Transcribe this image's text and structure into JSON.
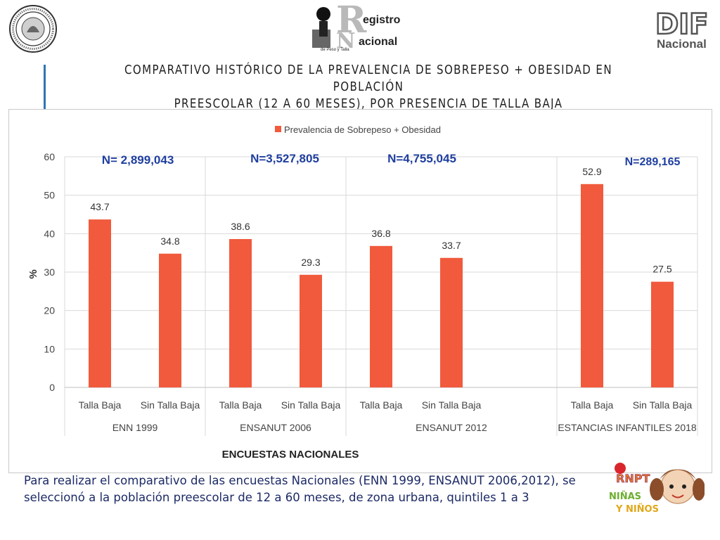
{
  "header": {
    "title_line1": "COMPARATIVO HISTÓRICO DE LA PREVALENCIA DE SOBREPESO + OBESIDAD EN POBLACIÓN",
    "title_line2": "PREESCOLAR (12 A 60 MESES), POR PRESENCIA DE TALLA BAJA",
    "logo_center_text1": "egistro",
    "logo_center_text2": "acional",
    "logo_center_sub": "de Peso y Talla",
    "logo_right_text": "DIF",
    "logo_right_sub": "Nacional"
  },
  "colors": {
    "bar": "#f15a3c",
    "n_text": "#1f3f9f",
    "title": "#1f1f1f",
    "note": "#1c2a66",
    "accent_bar": "#2e75b6"
  },
  "chart_data": {
    "type": "bar",
    "legend": "Prevalencia de Sobrepeso + Obesidad",
    "legend_position": "top",
    "ylabel": "%",
    "xlabel": "ENCUESTAS NACIONALES",
    "ylim": [
      0,
      60
    ],
    "yticks": [
      0,
      10,
      20,
      30,
      40,
      50,
      60
    ],
    "grid": true,
    "groups": [
      {
        "name": "ENN 1999",
        "n_label": "N= 2,899,043",
        "categories": [
          "Talla Baja",
          "Sin Talla Baja"
        ],
        "values": [
          43.7,
          34.8
        ]
      },
      {
        "name": "ENSANUT 2006",
        "n_label": "N=3,527,805",
        "categories": [
          "Talla Baja",
          "Sin Talla Baja"
        ],
        "values": [
          38.6,
          29.3
        ]
      },
      {
        "name": "ENSANUT 2012",
        "n_label": "N=4,755,045",
        "categories": [
          "Talla Baja",
          "Sin Talla Baja"
        ],
        "values": [
          36.8,
          33.7
        ]
      },
      {
        "name": "ESTANCIAS INFANTILES 2018",
        "n_label": "N=289,165",
        "categories": [
          "Talla Baja",
          "Sin Talla Baja"
        ],
        "values": [
          52.9,
          27.5
        ]
      }
    ]
  },
  "note": {
    "text": "Para realizar el comparativo de las  encuestas Nacionales (ENN 1999, ENSANUT 2006,2012),  se seleccionó a la población preescolar de 12 a 60 meses, de zona urbana, quintiles 1 a 3"
  },
  "logo_bottom": {
    "line1": "RNPT",
    "line2": "NIÑAS",
    "line3": "Y NIÑOS"
  }
}
